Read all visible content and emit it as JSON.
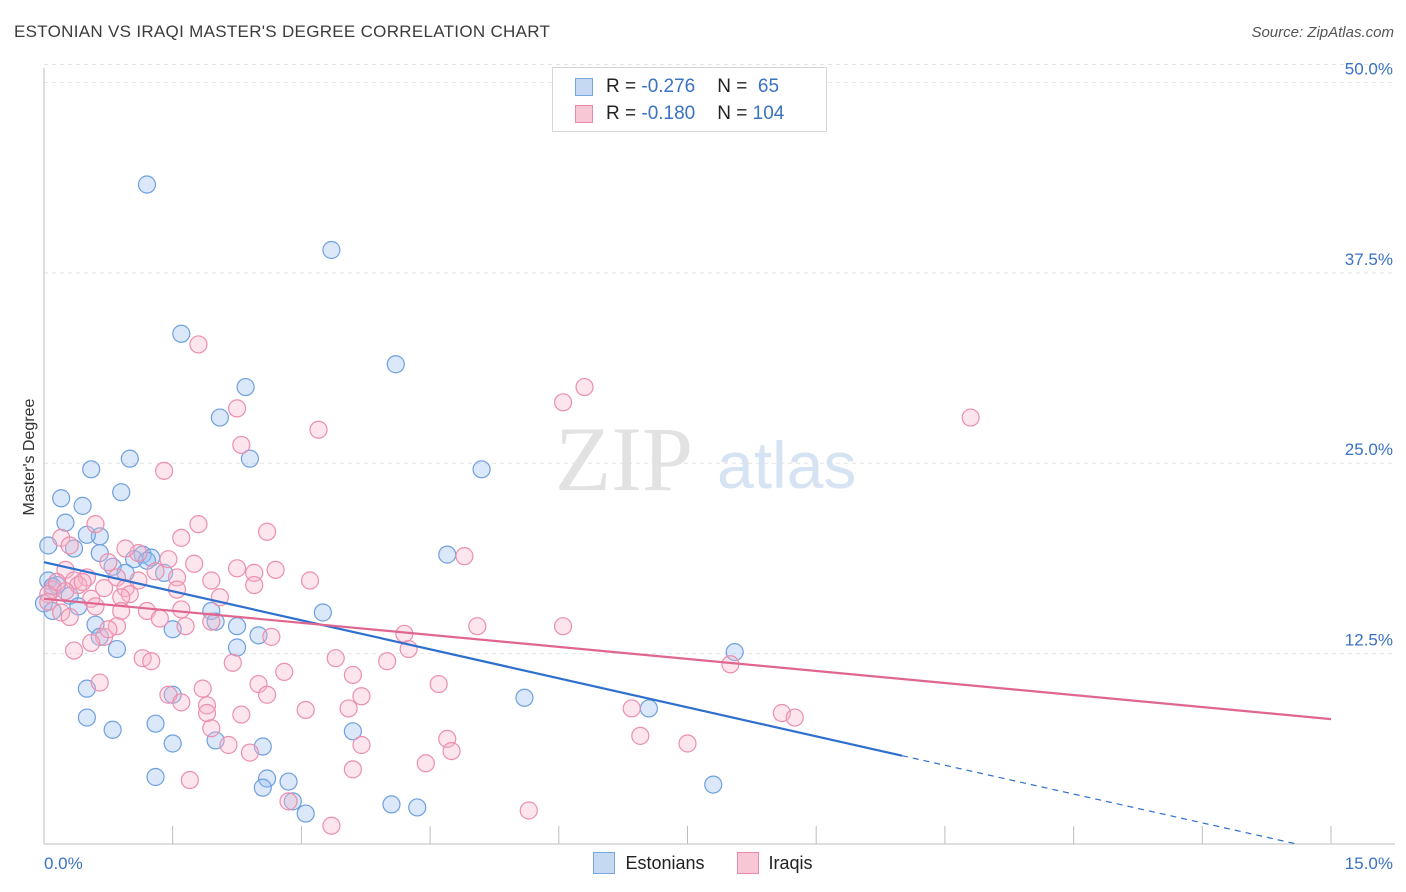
{
  "header": {
    "title": "ESTONIAN VS IRAQI MASTER'S DEGREE CORRELATION CHART",
    "source": "Source: ZipAtlas.com"
  },
  "watermark": {
    "zip": "ZIP",
    "atlas": "atlas"
  },
  "legend": {
    "rows": [
      {
        "r_label": "R = ",
        "r_value": "-0.276",
        "n_label": "N = ",
        "n_value": " 65",
        "color": "#7aa6e0",
        "fill": "#c5d9f3"
      },
      {
        "r_label": "R = ",
        "r_value": "-0.180",
        "n_label": "N = ",
        "n_value": "104",
        "color": "#e88aa8",
        "fill": "#f7c7d6"
      }
    ]
  },
  "bottom_legend": [
    {
      "label": "Estonians",
      "color": "#7aa6e0",
      "fill": "#c5d9f3"
    },
    {
      "label": "Iraqis",
      "color": "#e88aa8",
      "fill": "#f7c7d6"
    }
  ],
  "chart_data": {
    "type": "scatter",
    "title": "ESTONIAN VS IRAQI MASTER'S DEGREE CORRELATION CHART",
    "xlabel": "",
    "ylabel": "Master's Degree",
    "xlim": [
      0,
      15
    ],
    "ylim": [
      0,
      52
    ],
    "x_tick_labels": [
      "0.0%",
      "15.0%"
    ],
    "y_ticks": [
      12.5,
      25.0,
      37.5,
      50.0
    ],
    "y_tick_labels": [
      "12.5%",
      "25.0%",
      "37.5%",
      "50.0%"
    ],
    "grid": true,
    "series": [
      {
        "name": "Estonians",
        "color": "#6fa0de",
        "fill": "rgba(150,190,240,0.35)",
        "points": [
          [
            1.2,
            43.3
          ],
          [
            3.35,
            39.0
          ],
          [
            1.6,
            33.5
          ],
          [
            4.1,
            31.5
          ],
          [
            2.35,
            30.0
          ],
          [
            2.05,
            28.0
          ],
          [
            2.4,
            25.3
          ],
          [
            1.0,
            25.3
          ],
          [
            0.55,
            24.6
          ],
          [
            5.1,
            24.6
          ],
          [
            0.9,
            23.1
          ],
          [
            0.2,
            22.7
          ],
          [
            0.45,
            22.2
          ],
          [
            0.25,
            21.1
          ],
          [
            0.65,
            20.2
          ],
          [
            0.5,
            20.3
          ],
          [
            0.05,
            19.6
          ],
          [
            0.35,
            19.4
          ],
          [
            0.65,
            19.1
          ],
          [
            1.15,
            19.0
          ],
          [
            1.25,
            18.8
          ],
          [
            1.05,
            18.7
          ],
          [
            1.2,
            18.6
          ],
          [
            0.8,
            18.2
          ],
          [
            4.7,
            19.0
          ],
          [
            0.95,
            17.8
          ],
          [
            1.4,
            17.8
          ],
          [
            0.05,
            17.3
          ],
          [
            0.15,
            17.0
          ],
          [
            0.1,
            16.9
          ],
          [
            0.3,
            16.3
          ],
          [
            0.0,
            15.8
          ],
          [
            0.4,
            15.6
          ],
          [
            0.1,
            15.3
          ],
          [
            1.95,
            15.3
          ],
          [
            3.25,
            15.2
          ],
          [
            2.0,
            14.6
          ],
          [
            1.5,
            14.1
          ],
          [
            0.6,
            14.4
          ],
          [
            2.25,
            14.3
          ],
          [
            0.65,
            13.6
          ],
          [
            2.5,
            13.7
          ],
          [
            0.85,
            12.8
          ],
          [
            2.25,
            12.9
          ],
          [
            8.05,
            12.6
          ],
          [
            0.5,
            10.2
          ],
          [
            1.5,
            9.8
          ],
          [
            5.6,
            9.6
          ],
          [
            7.05,
            8.9
          ],
          [
            0.5,
            8.3
          ],
          [
            1.3,
            7.9
          ],
          [
            0.8,
            7.5
          ],
          [
            3.6,
            7.4
          ],
          [
            2.0,
            6.8
          ],
          [
            1.5,
            6.6
          ],
          [
            2.55,
            6.4
          ],
          [
            1.3,
            4.4
          ],
          [
            2.6,
            4.3
          ],
          [
            2.85,
            4.1
          ],
          [
            2.55,
            3.7
          ],
          [
            7.8,
            3.9
          ],
          [
            2.9,
            2.8
          ],
          [
            4.05,
            2.6
          ],
          [
            4.35,
            2.4
          ],
          [
            3.05,
            2.0
          ]
        ]
      },
      {
        "name": "Iraqis",
        "color": "#ec8fae",
        "fill": "rgba(245,180,200,0.35)",
        "points": [
          [
            1.8,
            32.8
          ],
          [
            6.3,
            30.0
          ],
          [
            6.05,
            29.0
          ],
          [
            2.25,
            28.6
          ],
          [
            10.8,
            28.0
          ],
          [
            3.2,
            27.2
          ],
          [
            2.3,
            26.2
          ],
          [
            1.4,
            24.5
          ],
          [
            1.8,
            21.0
          ],
          [
            0.6,
            21.0
          ],
          [
            0.2,
            20.1
          ],
          [
            2.6,
            20.5
          ],
          [
            1.6,
            20.1
          ],
          [
            0.3,
            19.6
          ],
          [
            1.1,
            19.1
          ],
          [
            1.45,
            18.7
          ],
          [
            4.9,
            18.9
          ],
          [
            1.75,
            18.4
          ],
          [
            0.75,
            18.5
          ],
          [
            2.25,
            18.1
          ],
          [
            2.7,
            18.0
          ],
          [
            1.3,
            17.9
          ],
          [
            0.25,
            18.0
          ],
          [
            2.45,
            17.8
          ],
          [
            0.5,
            17.5
          ],
          [
            1.55,
            17.5
          ],
          [
            0.85,
            17.5
          ],
          [
            0.35,
            17.3
          ],
          [
            3.1,
            17.3
          ],
          [
            1.95,
            17.3
          ],
          [
            0.4,
            17.0
          ],
          [
            2.45,
            17.0
          ],
          [
            0.7,
            16.8
          ],
          [
            0.95,
            16.8
          ],
          [
            1.55,
            16.7
          ],
          [
            0.1,
            16.7
          ],
          [
            0.05,
            16.4
          ],
          [
            0.55,
            16.1
          ],
          [
            1.0,
            16.4
          ],
          [
            0.9,
            16.2
          ],
          [
            2.05,
            16.2
          ],
          [
            0.05,
            15.9
          ],
          [
            0.6,
            15.6
          ],
          [
            0.9,
            15.3
          ],
          [
            1.2,
            15.3
          ],
          [
            1.6,
            15.4
          ],
          [
            0.2,
            15.2
          ],
          [
            0.3,
            14.9
          ],
          [
            1.35,
            14.8
          ],
          [
            1.95,
            14.6
          ],
          [
            1.65,
            14.3
          ],
          [
            0.85,
            14.3
          ],
          [
            5.05,
            14.3
          ],
          [
            6.05,
            14.3
          ],
          [
            0.7,
            13.6
          ],
          [
            2.65,
            13.6
          ],
          [
            4.2,
            13.8
          ],
          [
            0.55,
            13.2
          ],
          [
            4.25,
            12.8
          ],
          [
            1.15,
            12.2
          ],
          [
            1.25,
            12.0
          ],
          [
            3.4,
            12.2
          ],
          [
            4.0,
            12.0
          ],
          [
            2.2,
            11.9
          ],
          [
            8.0,
            11.8
          ],
          [
            2.8,
            11.3
          ],
          [
            3.6,
            11.1
          ],
          [
            0.65,
            10.6
          ],
          [
            2.5,
            10.5
          ],
          [
            1.85,
            10.2
          ],
          [
            4.6,
            10.5
          ],
          [
            1.45,
            9.8
          ],
          [
            2.6,
            9.8
          ],
          [
            1.6,
            9.3
          ],
          [
            1.9,
            9.1
          ],
          [
            3.05,
            8.8
          ],
          [
            3.55,
            8.9
          ],
          [
            1.9,
            8.6
          ],
          [
            6.85,
            8.9
          ],
          [
            2.3,
            8.5
          ],
          [
            8.6,
            8.6
          ],
          [
            8.75,
            8.3
          ],
          [
            1.95,
            7.6
          ],
          [
            4.7,
            6.9
          ],
          [
            7.5,
            6.6
          ],
          [
            2.15,
            6.5
          ],
          [
            3.7,
            6.5
          ],
          [
            4.75,
            6.1
          ],
          [
            6.95,
            7.1
          ],
          [
            4.45,
            5.3
          ],
          [
            3.6,
            4.9
          ],
          [
            1.7,
            4.2
          ],
          [
            2.85,
            2.8
          ],
          [
            5.65,
            2.2
          ],
          [
            3.35,
            1.2
          ],
          [
            0.15,
            17.2
          ],
          [
            0.25,
            16.6
          ],
          [
            0.45,
            17.2
          ],
          [
            1.1,
            17.3
          ],
          [
            0.75,
            14.1
          ],
          [
            0.35,
            12.7
          ],
          [
            3.7,
            9.7
          ],
          [
            2.4,
            6.0
          ],
          [
            0.95,
            19.4
          ]
        ]
      }
    ],
    "trend_lines": [
      {
        "series": "Estonians",
        "color": "#2f6fce",
        "x1": 0,
        "y1": 18.5,
        "x2": 10.0,
        "y2": 5.8,
        "dashed_to_x": 14.6,
        "dashed_to_y": 0.0
      },
      {
        "series": "Iraqis",
        "color": "#e0668f",
        "x1": 0,
        "y1": 16.1,
        "x2": 15.0,
        "y2": 8.2
      }
    ]
  }
}
